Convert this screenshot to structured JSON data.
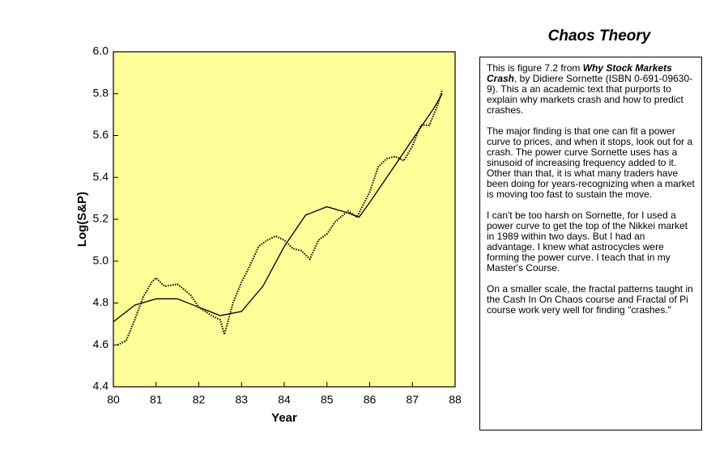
{
  "chart_data": {
    "type": "line",
    "x_label": "Year",
    "y_label": "Log(S&P)",
    "xlim": [
      80,
      88
    ],
    "xticks": [
      80,
      81,
      82,
      83,
      84,
      85,
      86,
      87,
      88
    ],
    "ylim": [
      4.4,
      6.0
    ],
    "yticks": [
      4.4,
      4.6,
      4.8,
      {
        "value": 5.0,
        "label": "5.0"
      },
      5.2,
      5.4,
      5.6,
      5.8,
      {
        "value": 6.0,
        "label": "6.0"
      }
    ],
    "background": "#ffff99",
    "series": [
      {
        "style": "dotted",
        "color": "#000000",
        "x": [
          80.1,
          80.3,
          80.5,
          80.7,
          80.9,
          81.0,
          81.2,
          81.5,
          81.8,
          82.0,
          82.3,
          82.5,
          82.6,
          82.8,
          83.0,
          83.2,
          83.4,
          83.6,
          83.8,
          84.0,
          84.2,
          84.4,
          84.6,
          84.8,
          85.0,
          85.2,
          85.5,
          85.7,
          86.0,
          86.2,
          86.4,
          86.6,
          86.8,
          87.0,
          87.2,
          87.4,
          87.6,
          87.7
        ],
        "values": [
          4.6,
          4.62,
          4.72,
          4.83,
          4.9,
          4.92,
          4.88,
          4.89,
          4.84,
          4.78,
          4.74,
          4.72,
          4.65,
          4.8,
          4.9,
          4.98,
          5.07,
          5.1,
          5.12,
          5.1,
          5.06,
          5.05,
          5.01,
          5.1,
          5.13,
          5.19,
          5.24,
          5.21,
          5.33,
          5.45,
          5.49,
          5.5,
          5.48,
          5.55,
          5.65,
          5.65,
          5.75,
          5.82
        ]
      },
      {
        "style": "solid",
        "color": "#000000",
        "x": [
          80.0,
          80.5,
          81.0,
          81.5,
          82.0,
          82.5,
          83.0,
          83.5,
          84.0,
          84.5,
          85.0,
          85.5,
          85.75,
          86.0,
          86.5,
          87.0,
          87.5,
          87.7
        ],
        "values": [
          4.71,
          4.79,
          4.82,
          4.82,
          4.78,
          4.74,
          4.76,
          4.88,
          5.07,
          5.22,
          5.26,
          5.23,
          5.21,
          5.28,
          5.43,
          5.58,
          5.73,
          5.8
        ]
      }
    ]
  },
  "panel": {
    "title": "Chaos Theory",
    "paragraphs": [
      [
        "This is figure 7.2 from ",
        "Why Stock Markets Crash",
        ", by Didiere Sornette (ISBN 0-691-09630-9). This a an academic text that purports to explain why markets crash and how to predict crashes."
      ],
      [
        "The major finding is that one can fit a power curve to prices, and when it stops, look out for a crash. The power curve Sornette uses has a sinusoid of increasing frequency added to it. Other than that, it is what many traders have been doing for years-recognizing when a market is moving too fast to sustain the move."
      ],
      [
        "I can't be too harsh on Sornette, for I used a power curve to get the top of the Nikkei market in 1989 within two days. But I had an advantage. I knew what astrocycles were forming the power curve. I teach that in my Master's Course."
      ],
      [
        "On a smaller scale, the fractal patterns taught in the Cash In On Chaos course and Fractal of Pi course work very well for finding \"crashes.\""
      ]
    ]
  }
}
